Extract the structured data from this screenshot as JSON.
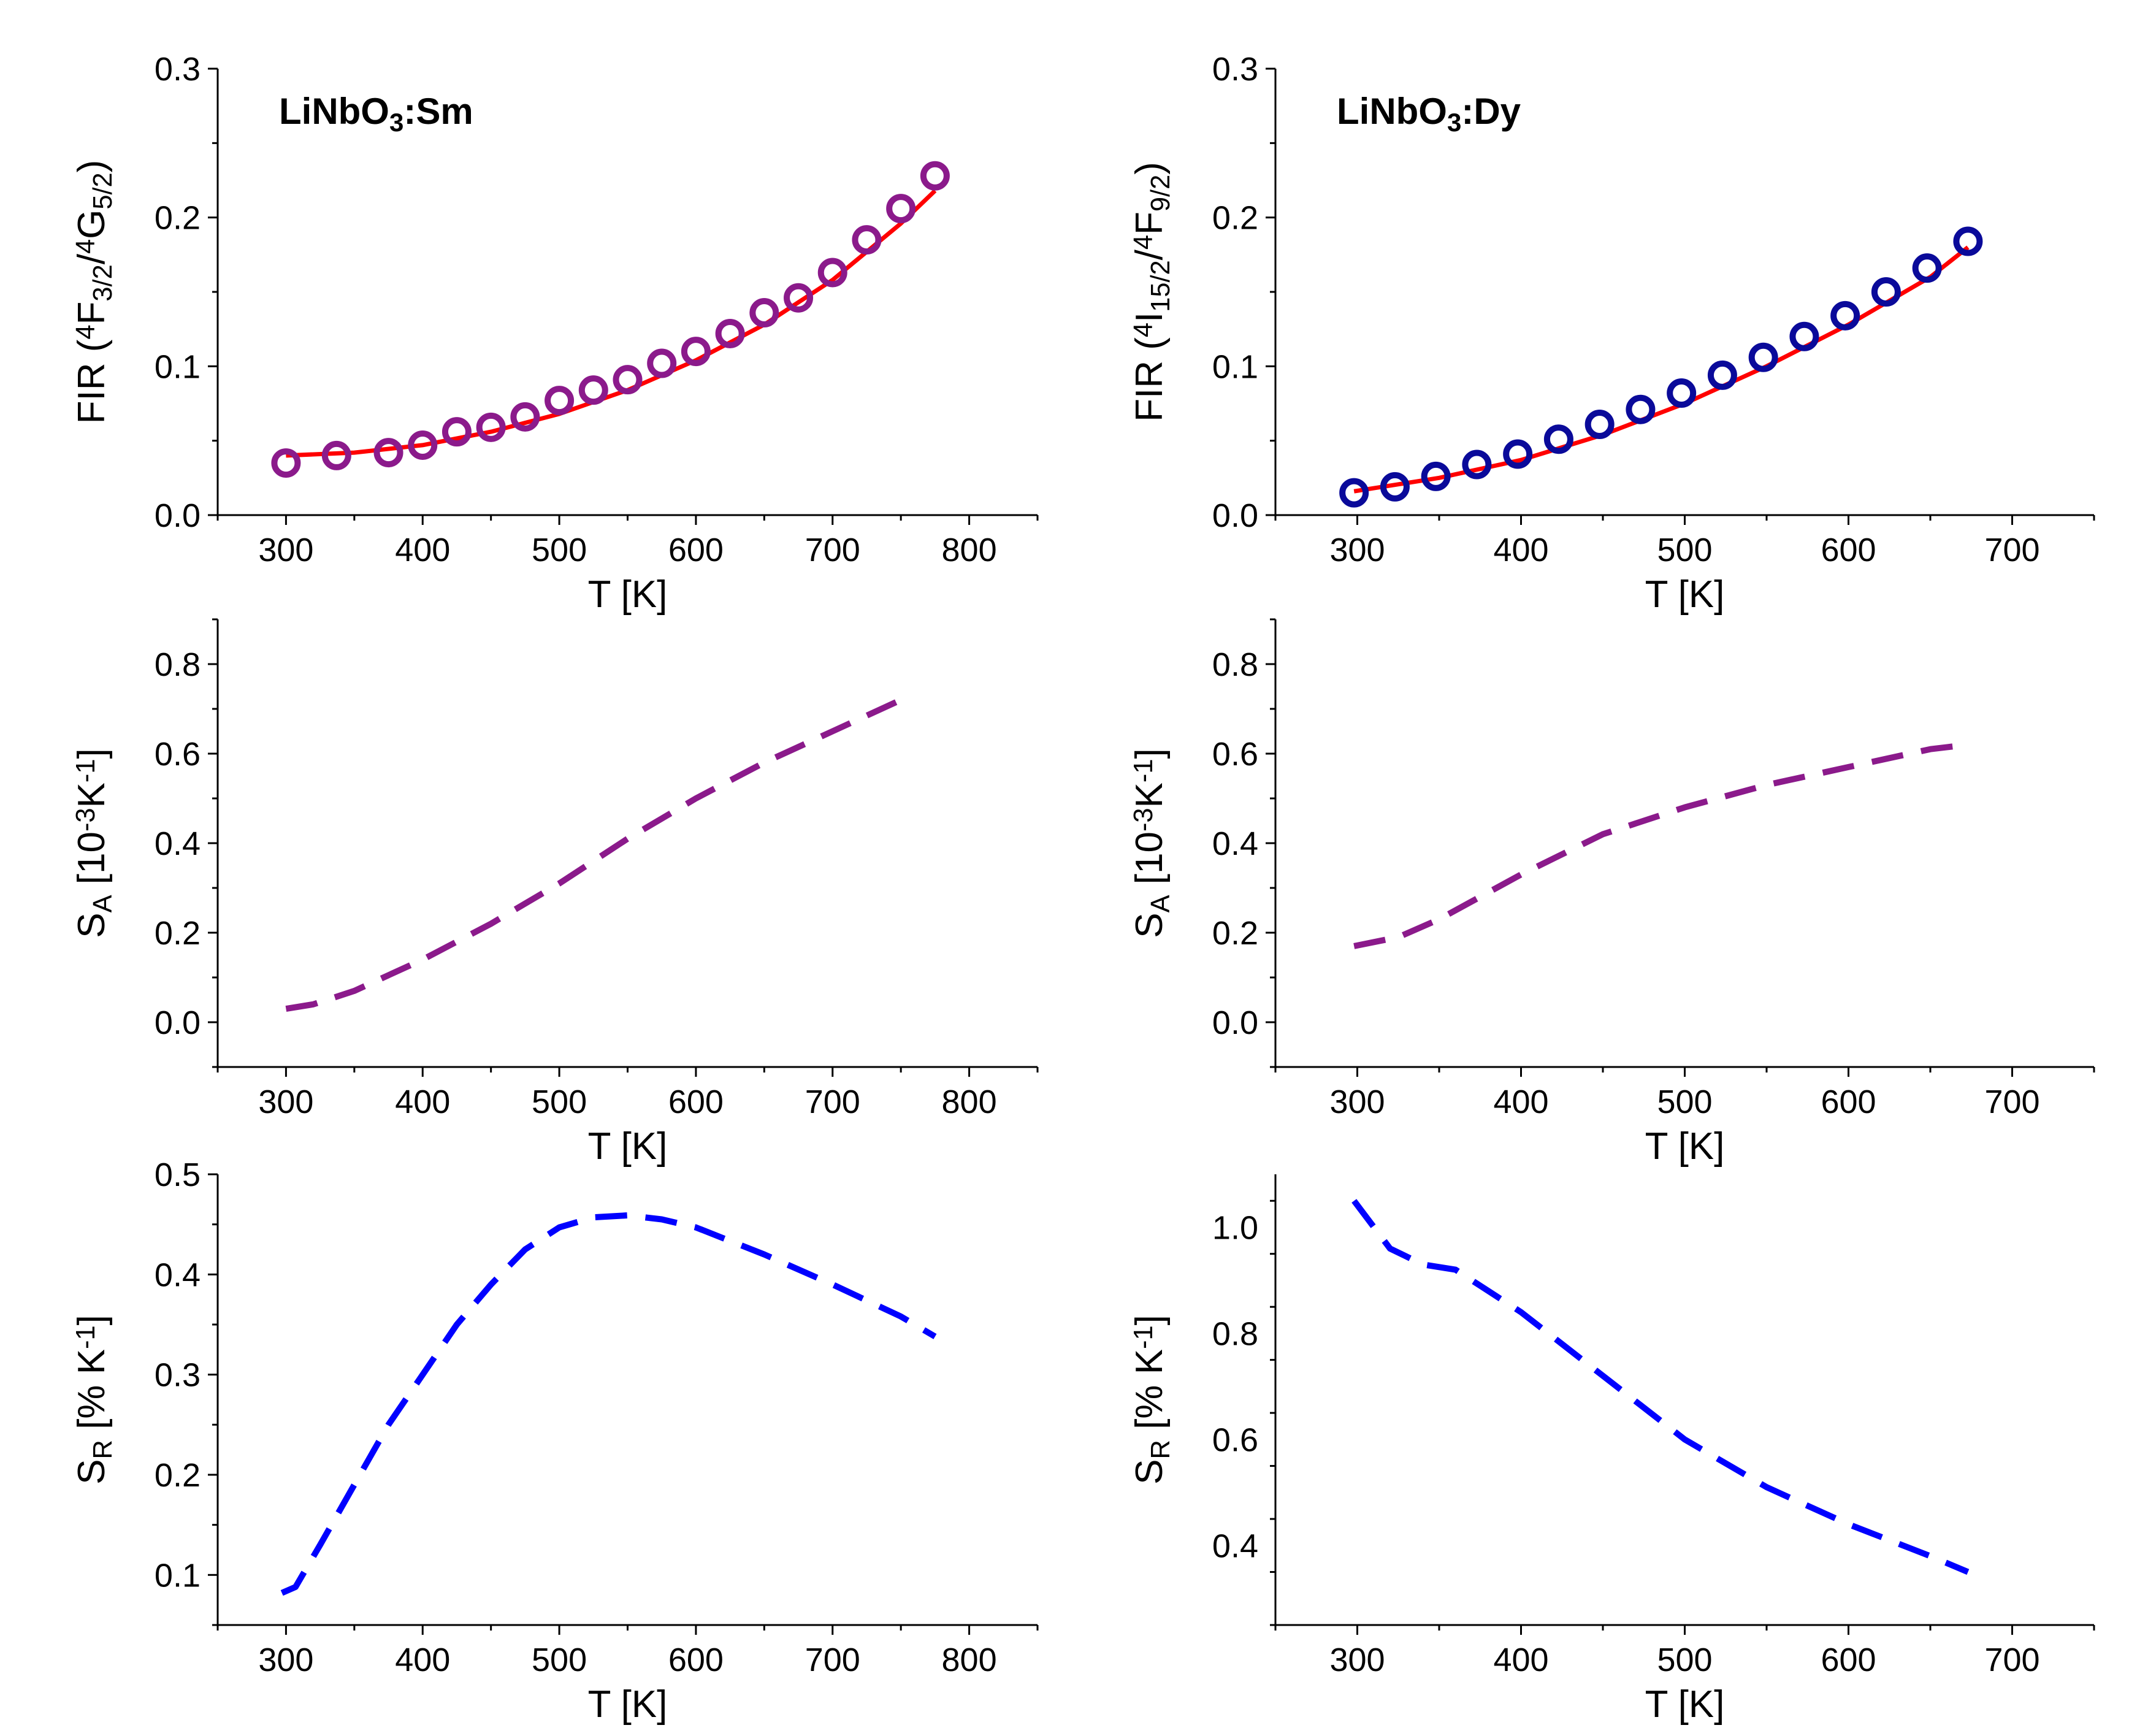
{
  "chart_data": [
    {
      "id": "fir-sm",
      "type": "scatter",
      "title": "LiNbO3:Sm",
      "title_parts": {
        "main": "LiNbO",
        "sub": "3",
        "tail": ":Sm"
      },
      "xlabel": "T [K]",
      "ylabel": "FIR (4F3/2/4G5/2)",
      "ylabel_parts": {
        "pre": "FIR (",
        "sup1": "4",
        "a": "F",
        "sub1": "3/2",
        "slash": "/",
        "sup2": "4",
        "b": "G",
        "sub2": "5/2",
        "post": ")"
      },
      "xlim": [
        250,
        850
      ],
      "ylim": [
        0,
        0.3
      ],
      "xticks": [
        300,
        400,
        500,
        600,
        700,
        800
      ],
      "yticks": [
        0.0,
        0.1,
        0.2,
        0.3
      ],
      "ytick_labels": [
        "0.0",
        "0.1",
        "0.2",
        "0.3"
      ],
      "marker_color": "#8B1A8B",
      "fit_color": "#FF0000",
      "series": [
        {
          "name": "measured",
          "x": [
            300,
            337,
            375,
            400,
            425,
            450,
            475,
            500,
            525,
            550,
            575,
            600,
            625,
            650,
            675,
            700,
            725,
            750,
            775
          ],
          "y": [
            0.035,
            0.04,
            0.042,
            0.047,
            0.056,
            0.059,
            0.066,
            0.077,
            0.084,
            0.091,
            0.102,
            0.11,
            0.122,
            0.136,
            0.146,
            0.163,
            0.185,
            0.206,
            0.228
          ]
        },
        {
          "name": "fit",
          "x": [
            300,
            350,
            400,
            450,
            500,
            550,
            600,
            650,
            700,
            750,
            775
          ],
          "y": [
            0.04,
            0.042,
            0.047,
            0.056,
            0.068,
            0.084,
            0.104,
            0.128,
            0.158,
            0.196,
            0.218
          ]
        }
      ]
    },
    {
      "id": "fir-dy",
      "type": "scatter",
      "title": "LiNbO3:Dy",
      "title_parts": {
        "main": "LiNbO",
        "sub": "3",
        "tail": ":Dy"
      },
      "xlabel": "T [K]",
      "ylabel": "FIR (4I15/2/4F9/2)",
      "ylabel_parts": {
        "pre": "FIR (",
        "sup1": "4",
        "a": "I",
        "sub1": "15/2",
        "slash": "/",
        "sup2": "4",
        "b": "F",
        "sub2": "9/2",
        "post": ")"
      },
      "xlim": [
        250,
        750
      ],
      "ylim": [
        0,
        0.3
      ],
      "xticks": [
        300,
        400,
        500,
        600,
        700
      ],
      "yticks": [
        0.0,
        0.1,
        0.2,
        0.3
      ],
      "ytick_labels": [
        "0.0",
        "0.1",
        "0.2",
        "0.3"
      ],
      "marker_color": "#0A0A9A",
      "fit_color": "#FF0000",
      "series": [
        {
          "name": "measured",
          "x": [
            298,
            323,
            348,
            373,
            398,
            423,
            448,
            473,
            498,
            523,
            548,
            573,
            598,
            623,
            648,
            673
          ],
          "y": [
            0.015,
            0.019,
            0.026,
            0.034,
            0.041,
            0.051,
            0.061,
            0.071,
            0.082,
            0.094,
            0.106,
            0.12,
            0.134,
            0.15,
            0.166,
            0.184
          ]
        },
        {
          "name": "fit",
          "x": [
            298,
            350,
            400,
            450,
            500,
            550,
            600,
            650,
            673
          ],
          "y": [
            0.016,
            0.025,
            0.037,
            0.054,
            0.075,
            0.1,
            0.128,
            0.16,
            0.18
          ]
        }
      ]
    },
    {
      "id": "sa-sm",
      "type": "line",
      "xlabel": "T [K]",
      "ylabel": "SA [10-3K-1]",
      "ylabel_parts": {
        "a": "S",
        "sub": "A",
        "rest": " [10",
        "sup1": "-3",
        "mid": "K",
        "sup2": "-1",
        "post": "]"
      },
      "xlim": [
        250,
        850
      ],
      "ylim": [
        -0.1,
        0.9
      ],
      "xticks": [
        300,
        400,
        500,
        600,
        700,
        800
      ],
      "yticks": [
        0.0,
        0.2,
        0.4,
        0.6,
        0.8
      ],
      "ytick_labels": [
        "0.0",
        "0.2",
        "0.4",
        "0.6",
        "0.8"
      ],
      "line_color": "#8B1A8B",
      "series": [
        {
          "name": "SA",
          "x": [
            300,
            320,
            350,
            400,
            450,
            500,
            550,
            600,
            650,
            700,
            750
          ],
          "y": [
            0.03,
            0.04,
            0.07,
            0.14,
            0.22,
            0.31,
            0.41,
            0.5,
            0.58,
            0.65,
            0.72
          ]
        }
      ]
    },
    {
      "id": "sa-dy",
      "type": "line",
      "xlabel": "T [K]",
      "ylabel": "SA [10-3K-1]",
      "ylabel_parts": {
        "a": "S",
        "sub": "A",
        "rest": " [10",
        "sup1": "-3",
        "mid": "K",
        "sup2": "-1",
        "post": "]"
      },
      "xlim": [
        250,
        750
      ],
      "ylim": [
        -0.1,
        0.9
      ],
      "xticks": [
        300,
        400,
        500,
        600,
        700
      ],
      "yticks": [
        0.0,
        0.2,
        0.4,
        0.6,
        0.8
      ],
      "ytick_labels": [
        "0.0",
        "0.2",
        "0.4",
        "0.6",
        "0.8"
      ],
      "line_color": "#8B1A8B",
      "series": [
        {
          "name": "SA",
          "x": [
            298,
            325,
            350,
            400,
            450,
            500,
            550,
            600,
            650,
            673
          ],
          "y": [
            0.17,
            0.19,
            0.23,
            0.33,
            0.42,
            0.48,
            0.53,
            0.57,
            0.61,
            0.62
          ]
        }
      ]
    },
    {
      "id": "sr-sm",
      "type": "line",
      "xlabel": "T [K]",
      "ylabel": "SR [% K-1]",
      "ylabel_parts": {
        "a": "S",
        "sub": "R",
        "rest": " [% K",
        "sup": "-1",
        "post": "]"
      },
      "xlim": [
        250,
        850
      ],
      "ylim": [
        0.05,
        0.5
      ],
      "xticks": [
        300,
        400,
        500,
        600,
        700,
        800
      ],
      "yticks": [
        0.1,
        0.2,
        0.3,
        0.4,
        0.5
      ],
      "ytick_labels": [
        "0.1",
        "0.2",
        "0.3",
        "0.4",
        "0.5"
      ],
      "line_color": "#0000FF",
      "series": [
        {
          "name": "SR",
          "x": [
            297,
            307,
            325,
            350,
            375,
            400,
            425,
            450,
            475,
            500,
            525,
            550,
            575,
            600,
            650,
            700,
            750,
            775
          ],
          "y": [
            0.082,
            0.088,
            0.13,
            0.19,
            0.25,
            0.3,
            0.35,
            0.39,
            0.425,
            0.447,
            0.457,
            0.459,
            0.455,
            0.447,
            0.42,
            0.39,
            0.358,
            0.338
          ]
        }
      ]
    },
    {
      "id": "sr-dy",
      "type": "line",
      "xlabel": "T [K]",
      "ylabel": "SR [% K-1]",
      "ylabel_parts": {
        "a": "S",
        "sub": "R",
        "rest": " [% K",
        "sup": "-1",
        "post": "]"
      },
      "xlim": [
        250,
        750
      ],
      "ylim": [
        0.25,
        1.1
      ],
      "xticks": [
        300,
        400,
        500,
        600,
        700
      ],
      "yticks": [
        0.4,
        0.6,
        0.8,
        1.0
      ],
      "ytick_labels": [
        "0.4",
        "0.6",
        "0.8",
        "1.0"
      ],
      "line_color": "#0000FF",
      "series": [
        {
          "name": "SR",
          "x": [
            298,
            320,
            340,
            360,
            380,
            400,
            450,
            500,
            550,
            600,
            650,
            673
          ],
          "y": [
            1.05,
            0.96,
            0.93,
            0.92,
            0.88,
            0.84,
            0.72,
            0.6,
            0.51,
            0.44,
            0.38,
            0.35
          ]
        }
      ]
    }
  ]
}
